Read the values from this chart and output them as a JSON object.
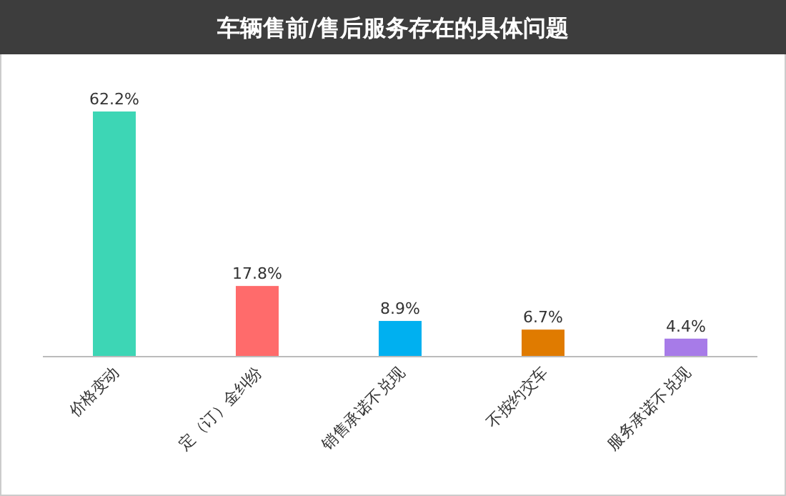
{
  "chart_data": {
    "type": "bar",
    "title": "车辆售前/售后服务存在的具体问题",
    "categories": [
      "价格变动",
      "定（订）金纠纷",
      "销售承诺不兑现",
      "不按约交车",
      "服务承诺不兑现"
    ],
    "values": [
      62.2,
      17.8,
      8.9,
      6.7,
      4.4
    ],
    "colors": [
      "#3dd6b5",
      "#ff6b6b",
      "#00b0f0",
      "#e07b00",
      "#a77be8"
    ],
    "value_labels": [
      "62.2%",
      "17.8%",
      "8.9%",
      "6.7%",
      "4.4%"
    ]
  }
}
